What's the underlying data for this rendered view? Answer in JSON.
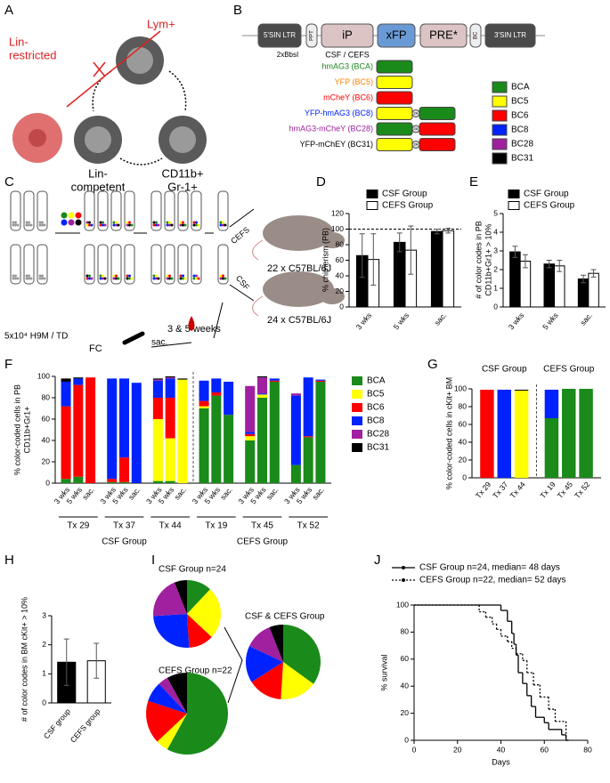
{
  "panel_labels": [
    "A",
    "B",
    "C",
    "D",
    "E",
    "F",
    "G",
    "H",
    "I",
    "J"
  ],
  "panel_a": {
    "lin_restricted": [
      "Lin-",
      "restricted"
    ],
    "lym": "Lym+",
    "lin_competent": [
      "Lin-",
      "competent"
    ],
    "myeloid": [
      "CD11b+",
      "Gr-1+"
    ]
  },
  "panel_b": {
    "vector": [
      "5'SIN LTR",
      "PPT",
      "iP",
      "xFP",
      "PRE*",
      "BC",
      "3'SIN LTR"
    ],
    "sites": "2xBbsI",
    "promoter": "CSF / CEFS",
    "linker": "2A",
    "constructs": [
      {
        "label": "hmAG3 (BCA)",
        "text_color": "#1a8a1a",
        "parts": [
          "#1a8a1a"
        ]
      },
      {
        "label": "YFP (BC5)",
        "text_color": "#ff8000",
        "parts": [
          "#ffff00"
        ]
      },
      {
        "label": "mCheY (BC6)",
        "text_color": "#ff0000",
        "parts": [
          "#ff0000"
        ]
      },
      {
        "label": "YFP-hmAG3 (BC8)",
        "text_color": "#0022ff",
        "parts": [
          "#ffff00",
          "#1a8a1a"
        ]
      },
      {
        "label": "hmAG3-mCheY (BC28)",
        "text_color": "#a020a0",
        "parts": [
          "#1a8a1a",
          "#ff0000"
        ]
      },
      {
        "label": "YFP-mChEY (BC31)",
        "text_color": "#000000",
        "parts": [
          "#ffff00",
          "#ff0000"
        ]
      }
    ],
    "legend": [
      {
        "label": "BCA",
        "color": "#1a8a1a"
      },
      {
        "label": "BC5",
        "color": "#ffff00"
      },
      {
        "label": "BC6",
        "color": "#ff0000"
      },
      {
        "label": "BC8",
        "color": "#0022ff"
      },
      {
        "label": "BC28",
        "color": "#a020a0"
      },
      {
        "label": "BC31",
        "color": "#000000"
      }
    ]
  },
  "panel_c": {
    "cells": "5x10⁴ H9M / TD",
    "cefs": "CEFS",
    "csf": "CSF",
    "cefs_mice": "22 x C57BL/6J",
    "csf_mice": "24 x C57BL/6J",
    "timepoints": "3 & 5 weeks",
    "sacrifice": "sac.",
    "flow": "FC"
  },
  "chart_data": [
    {
      "type": "bar",
      "ylabel": "% chimerism (PB)",
      "categories": [
        "3 wks",
        "5 wks",
        "sac."
      ],
      "series": [
        {
          "name": "CSF Group",
          "color": "#000000",
          "values": [
            66,
            83,
            97
          ],
          "errors": [
            28,
            12,
            3
          ]
        },
        {
          "name": "CEFS Group",
          "color": "#ffffff",
          "values": [
            61,
            73,
            98
          ],
          "errors": [
            33,
            31,
            3
          ]
        }
      ],
      "ylim": [
        0,
        120
      ],
      "yticks": [
        0,
        20,
        40,
        60,
        80,
        100,
        120
      ],
      "reference_line": 100
    },
    {
      "type": "bar",
      "ylabel": [
        "# of color codes in PB",
        "CD11b+Gr1+ > 10%"
      ],
      "categories": [
        "3 wks",
        "5 wks",
        "sac."
      ],
      "series": [
        {
          "name": "CSF Group",
          "color": "#000000",
          "values": [
            2.95,
            2.3,
            1.5
          ],
          "errors": [
            0.3,
            0.2,
            0.2
          ]
        },
        {
          "name": "CEFS Group",
          "color": "#ffffff",
          "values": [
            2.45,
            2.2,
            1.8
          ],
          "errors": [
            0.35,
            0.3,
            0.2
          ]
        }
      ],
      "ylim": [
        0,
        5
      ],
      "yticks": [
        0,
        1,
        2,
        3,
        4,
        5
      ]
    },
    {
      "type": "stacked_bar",
      "ylabel": [
        "% color-coded cells in PB",
        "CD11b+Gr1+"
      ],
      "categories": [
        "3 wks",
        "5 wks",
        "sac.",
        "3 wks",
        "5 wks",
        "sac.",
        "3 wks",
        "5 wks",
        "sac.",
        "3 wks",
        "5 wks",
        "sac.",
        "3 wks",
        "5 wks",
        "sac.",
        "3 wks",
        "5 wks",
        "sac."
      ],
      "groups": [
        "Tx 29",
        "Tx 37",
        "Tx 44",
        "Tx 19",
        "Tx 45",
        "Tx 52"
      ],
      "super_groups": [
        "CSF Group",
        "CEFS Group"
      ],
      "series": [
        {
          "name": "BCA",
          "color": "#1a8a1a",
          "values": [
            4,
            6,
            0,
            1,
            1,
            0,
            2,
            2,
            0,
            70,
            82,
            64,
            40,
            80,
            95,
            17,
            43,
            95
          ]
        },
        {
          "name": "BC5",
          "color": "#ffff00",
          "values": [
            0,
            0,
            0,
            0,
            0,
            0,
            58,
            40,
            97,
            2,
            0,
            0,
            4,
            3,
            0,
            0,
            0,
            0
          ]
        },
        {
          "name": "BC6",
          "color": "#ff0000",
          "values": [
            68,
            86,
            99,
            3,
            23,
            0,
            20,
            38,
            0,
            5,
            3,
            0,
            2,
            0,
            1,
            0,
            1,
            1
          ]
        },
        {
          "name": "BC8",
          "color": "#0022ff",
          "values": [
            23,
            6,
            0,
            94,
            74,
            94,
            16,
            18,
            0,
            19,
            13,
            31,
            2,
            1,
            2,
            65,
            55,
            1
          ]
        },
        {
          "name": "BC28",
          "color": "#a020a0",
          "values": [
            0,
            0,
            0,
            0,
            0,
            0,
            1,
            1,
            0,
            0,
            0,
            0,
            43,
            15,
            0,
            2,
            0,
            0
          ]
        },
        {
          "name": "BC31",
          "color": "#000000",
          "values": [
            3,
            1,
            0,
            0,
            0,
            0,
            1,
            1,
            1,
            0,
            0,
            0,
            0,
            1,
            0,
            0,
            0,
            0
          ]
        }
      ],
      "ylim": [
        0,
        100
      ],
      "yticks": [
        0,
        20,
        40,
        60,
        80,
        100
      ]
    },
    {
      "type": "stacked_bar",
      "ylabel": "% color-coded cells in cKit+ BM",
      "categories": [
        "Tx 29",
        "Tx 37",
        "Tx 44",
        "Tx 19",
        "Tx 45",
        "Tx 52"
      ],
      "group_titles": [
        "CSF Group",
        "CEFS Group"
      ],
      "series": [
        {
          "color": "#1a8a1a",
          "values": [
            0,
            0,
            0,
            67,
            100,
            100
          ]
        },
        {
          "color": "#ffff00",
          "values": [
            0,
            0,
            98,
            0,
            0,
            0
          ]
        },
        {
          "color": "#ff0000",
          "values": [
            99,
            0,
            0,
            0,
            0,
            0
          ]
        },
        {
          "color": "#0022ff",
          "values": [
            0,
            99,
            0,
            32,
            0,
            0
          ]
        },
        {
          "color": "#a020a0",
          "values": [
            0,
            0,
            0,
            0,
            0,
            0
          ]
        },
        {
          "color": "#000000",
          "values": [
            0,
            0,
            1,
            0,
            0,
            0
          ]
        }
      ],
      "ylim": [
        0,
        100
      ],
      "yticks": [
        0,
        20,
        40,
        60,
        80,
        100
      ]
    },
    {
      "type": "bar",
      "ylabel": "# of color codes in BM cKit+ > 10%",
      "categories": [
        "CSF group",
        "CEFS group"
      ],
      "colors": [
        "#000000",
        "#ffffff"
      ],
      "series": [
        {
          "values": [
            1.4,
            1.45
          ],
          "errors": [
            0.8,
            0.6
          ]
        }
      ],
      "ylim": [
        0,
        3
      ],
      "yticks": [
        0,
        1,
        2,
        3
      ]
    },
    {
      "type": "pie",
      "title": "CSF Group n=24",
      "values": [
        12,
        25,
        12,
        25,
        20,
        6
      ],
      "colors": [
        "#1a8a1a",
        "#ffff00",
        "#ff0000",
        "#0022ff",
        "#a020a0",
        "#000000"
      ]
    },
    {
      "type": "pie",
      "title": "CEFS Group n=22",
      "values": [
        58,
        5,
        17,
        8,
        4,
        8
      ],
      "colors": [
        "#1a8a1a",
        "#ffff00",
        "#ff0000",
        "#0022ff",
        "#a020a0",
        "#000000"
      ]
    },
    {
      "type": "pie",
      "title": "CSF & CEFS Group",
      "values": [
        35,
        16,
        15,
        16,
        12,
        6
      ],
      "colors": [
        "#1a8a1a",
        "#ffff00",
        "#ff0000",
        "#0022ff",
        "#a020a0",
        "#000000"
      ]
    },
    {
      "type": "line",
      "xlabel": "Days",
      "ylabel": "% survival",
      "series": [
        {
          "name": "CSF Group n=24, median= 48 days",
          "color": "#000000",
          "dashed": false,
          "x": [
            0,
            40,
            43,
            45,
            46,
            47,
            48,
            50,
            52,
            54,
            56,
            60,
            62,
            68,
            70
          ],
          "values": [
            100,
            96,
            88,
            79,
            71,
            63,
            50,
            42,
            33,
            25,
            17,
            13,
            8,
            4,
            0
          ]
        },
        {
          "name": "CEFS Group n=22, median= 52 days",
          "color": "#000000",
          "dashed": true,
          "x": [
            0,
            30,
            33,
            36,
            38,
            40,
            43,
            45,
            47,
            50,
            52,
            55,
            58,
            62,
            65,
            70
          ],
          "values": [
            100,
            95,
            91,
            86,
            82,
            77,
            73,
            68,
            64,
            59,
            50,
            41,
            32,
            23,
            14,
            0
          ]
        }
      ],
      "xlim": [
        0,
        80
      ],
      "xticks": [
        0,
        20,
        40,
        60,
        80
      ],
      "ylim": [
        0,
        100
      ],
      "yticks": [
        0,
        20,
        40,
        60,
        80,
        100
      ]
    }
  ]
}
